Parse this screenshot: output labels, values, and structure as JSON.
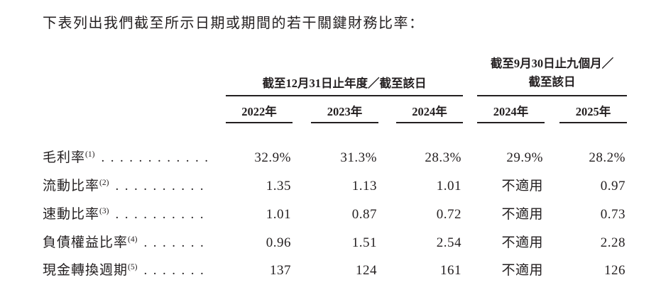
{
  "title": "下表列出我們截至所示日期或期間的若干關鍵財務比率：",
  "colors": {
    "text": "#231f20",
    "rule": "#231f20",
    "background": "#ffffff"
  },
  "table": {
    "group1": {
      "title": "截至12月31日止年度／截至該日",
      "years": [
        "2022年",
        "2023年",
        "2024年"
      ]
    },
    "group2": {
      "title_line1": "截至9月30日止九個月／",
      "title_line2": "截至該日",
      "years": [
        "2024年",
        "2025年"
      ]
    },
    "rows": [
      {
        "label": "毛利率",
        "footnote": "(1)",
        "leader": "............",
        "values": [
          "32.9%",
          "31.3%",
          "28.3%",
          "29.9%",
          "28.2%"
        ]
      },
      {
        "label": "流動比率",
        "footnote": "(2)",
        "leader": "..........",
        "values": [
          "1.35",
          "1.13",
          "1.01",
          "不適用",
          "0.97"
        ]
      },
      {
        "label": "速動比率",
        "footnote": "(3)",
        "leader": "..........",
        "values": [
          "1.01",
          "0.87",
          "0.72",
          "不適用",
          "0.73"
        ]
      },
      {
        "label": "負債權益比率",
        "footnote": "(4)",
        "leader": ".......",
        "values": [
          "0.96",
          "1.51",
          "2.54",
          "不適用",
          "2.28"
        ]
      },
      {
        "label": "現金轉換週期",
        "footnote": "(5)",
        "leader": ".......",
        "values": [
          "137",
          "124",
          "161",
          "不適用",
          "126"
        ]
      }
    ]
  }
}
